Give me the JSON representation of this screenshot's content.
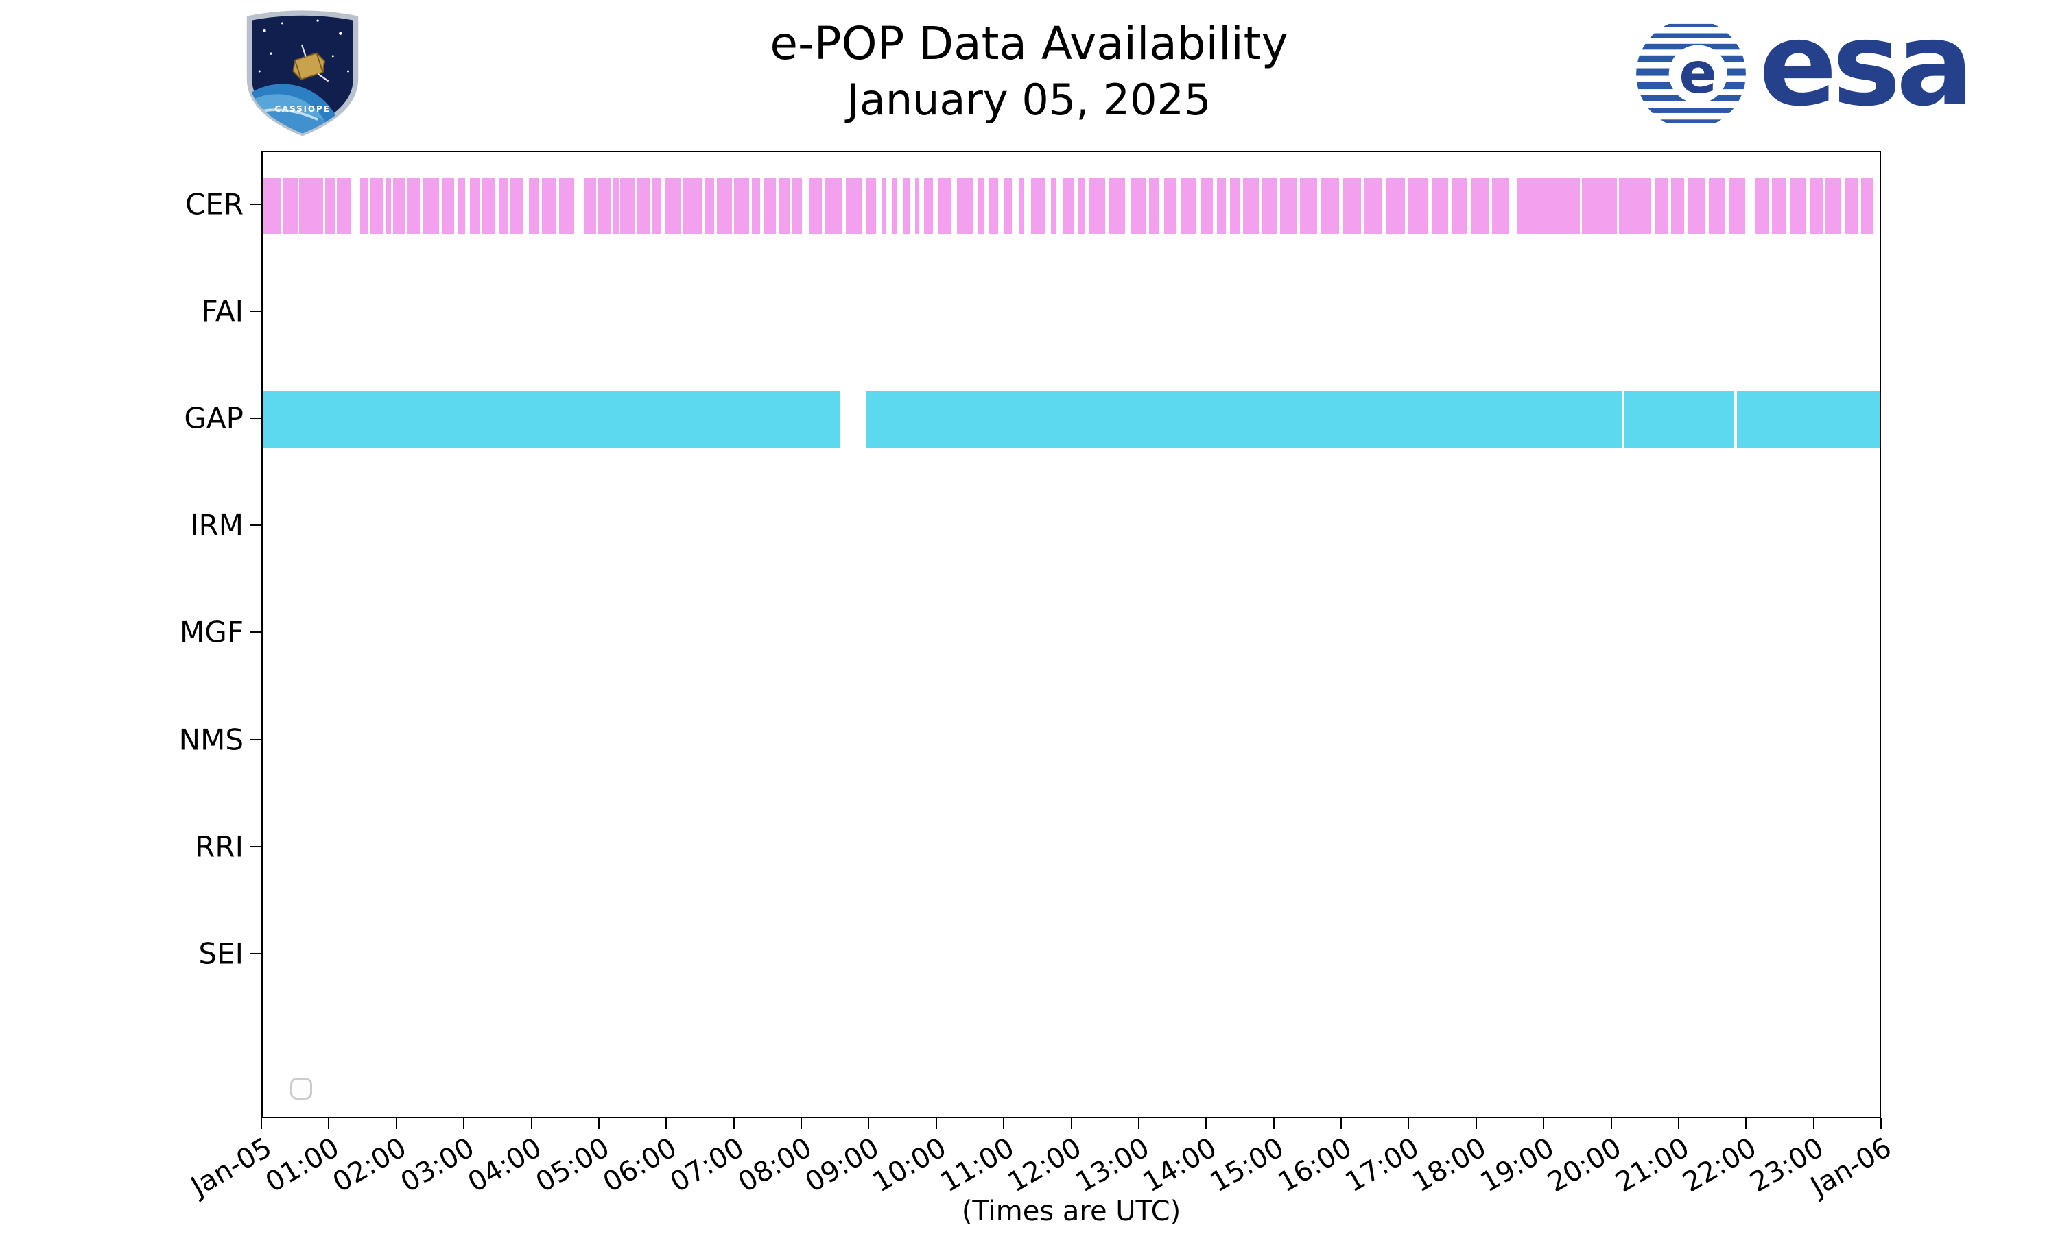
{
  "colors": {
    "esa_blue": "#26418c",
    "esa_stripe_blue": "#2c59a5",
    "cer_pink": "#f3a1ef",
    "gap_cyan": "#5cd9ef"
  },
  "header": {
    "title": "e-POP Data Availability",
    "subtitle": "January 05, 2025",
    "cassiope_text": "CASSIOPE",
    "esa_wordmark": "esa"
  },
  "chart_data": {
    "type": "timeline",
    "title": "e-POP Data Availability",
    "subtitle": "January 05, 2025",
    "xlabel": "(Times are UTC)",
    "x_range_hours": [
      0,
      24
    ],
    "x_tick_labels": [
      "Jan-05",
      "01:00",
      "02:00",
      "03:00",
      "04:00",
      "05:00",
      "06:00",
      "07:00",
      "08:00",
      "09:00",
      "10:00",
      "11:00",
      "12:00",
      "13:00",
      "14:00",
      "15:00",
      "16:00",
      "17:00",
      "18:00",
      "19:00",
      "20:00",
      "21:00",
      "22:00",
      "23:00",
      "Jan-06"
    ],
    "y_categories": [
      "CER",
      "FAI",
      "GAP",
      "IRM",
      "MGF",
      "NMS",
      "RRI",
      "SEI"
    ],
    "legend_visible_entries": 0,
    "rows": [
      {
        "label": "CER",
        "color": "#f3a1ef",
        "intervals": [
          [
            0.0,
            0.28
          ],
          [
            0.3,
            0.52
          ],
          [
            0.54,
            0.9
          ],
          [
            0.93,
            1.08
          ],
          [
            1.1,
            1.3
          ],
          [
            1.45,
            1.57
          ],
          [
            1.6,
            1.78
          ],
          [
            1.82,
            1.9
          ],
          [
            1.93,
            2.12
          ],
          [
            2.15,
            2.33
          ],
          [
            2.38,
            2.62
          ],
          [
            2.66,
            2.84
          ],
          [
            2.9,
            3.0
          ],
          [
            3.08,
            3.22
          ],
          [
            3.26,
            3.45
          ],
          [
            3.5,
            3.64
          ],
          [
            3.68,
            3.86
          ],
          [
            3.95,
            4.1
          ],
          [
            4.14,
            4.35
          ],
          [
            4.4,
            4.62
          ],
          [
            4.78,
            4.95
          ],
          [
            4.98,
            5.16
          ],
          [
            5.2,
            5.28
          ],
          [
            5.31,
            5.53
          ],
          [
            5.56,
            5.75
          ],
          [
            5.78,
            5.92
          ],
          [
            5.97,
            6.2
          ],
          [
            6.24,
            6.52
          ],
          [
            6.56,
            6.7
          ],
          [
            6.74,
            6.96
          ],
          [
            7.0,
            7.22
          ],
          [
            7.26,
            7.38
          ],
          [
            7.43,
            7.62
          ],
          [
            7.66,
            7.82
          ],
          [
            7.86,
            8.0
          ],
          [
            8.12,
            8.3
          ],
          [
            8.34,
            8.6
          ],
          [
            8.66,
            8.9
          ],
          [
            8.95,
            9.1
          ],
          [
            9.18,
            9.26
          ],
          [
            9.34,
            9.42
          ],
          [
            9.5,
            9.6
          ],
          [
            9.68,
            9.74
          ],
          [
            9.82,
            9.95
          ],
          [
            10.02,
            10.22
          ],
          [
            10.3,
            10.55
          ],
          [
            10.62,
            10.7
          ],
          [
            10.78,
            10.92
          ],
          [
            11.0,
            11.12
          ],
          [
            11.22,
            11.3
          ],
          [
            11.4,
            11.62
          ],
          [
            11.7,
            11.78
          ],
          [
            11.88,
            12.05
          ],
          [
            12.1,
            12.2
          ],
          [
            12.26,
            12.5
          ],
          [
            12.55,
            12.8
          ],
          [
            12.88,
            13.1
          ],
          [
            13.16,
            13.3
          ],
          [
            13.38,
            13.56
          ],
          [
            13.62,
            13.85
          ],
          [
            13.92,
            14.1
          ],
          [
            14.16,
            14.3
          ],
          [
            14.36,
            14.5
          ],
          [
            14.55,
            14.8
          ],
          [
            14.84,
            15.05
          ],
          [
            15.1,
            15.35
          ],
          [
            15.4,
            15.65
          ],
          [
            15.7,
            15.98
          ],
          [
            16.03,
            16.3
          ],
          [
            16.35,
            16.62
          ],
          [
            16.68,
            16.95
          ],
          [
            17.0,
            17.3
          ],
          [
            17.36,
            17.6
          ],
          [
            17.65,
            17.88
          ],
          [
            17.94,
            18.2
          ],
          [
            18.25,
            18.5
          ],
          [
            18.62,
            19.55
          ],
          [
            19.58,
            20.1
          ],
          [
            20.13,
            20.6
          ],
          [
            20.66,
            20.85
          ],
          [
            20.9,
            21.1
          ],
          [
            21.16,
            21.4
          ],
          [
            21.46,
            21.7
          ],
          [
            21.76,
            22.0
          ],
          [
            22.15,
            22.35
          ],
          [
            22.4,
            22.62
          ],
          [
            22.68,
            22.9
          ],
          [
            22.96,
            23.15
          ],
          [
            23.2,
            23.42
          ],
          [
            23.48,
            23.68
          ],
          [
            23.72,
            23.9
          ]
        ]
      },
      {
        "label": "FAI",
        "intervals": []
      },
      {
        "label": "GAP",
        "color": "#5cd9ef",
        "intervals": [
          [
            0.0,
            8.57
          ],
          [
            8.95,
            20.17
          ],
          [
            20.21,
            21.84
          ],
          [
            21.88,
            24.0
          ]
        ]
      },
      {
        "label": "IRM",
        "intervals": []
      },
      {
        "label": "MGF",
        "intervals": []
      },
      {
        "label": "NMS",
        "intervals": []
      },
      {
        "label": "RRI",
        "intervals": []
      },
      {
        "label": "SEI",
        "intervals": []
      }
    ]
  }
}
